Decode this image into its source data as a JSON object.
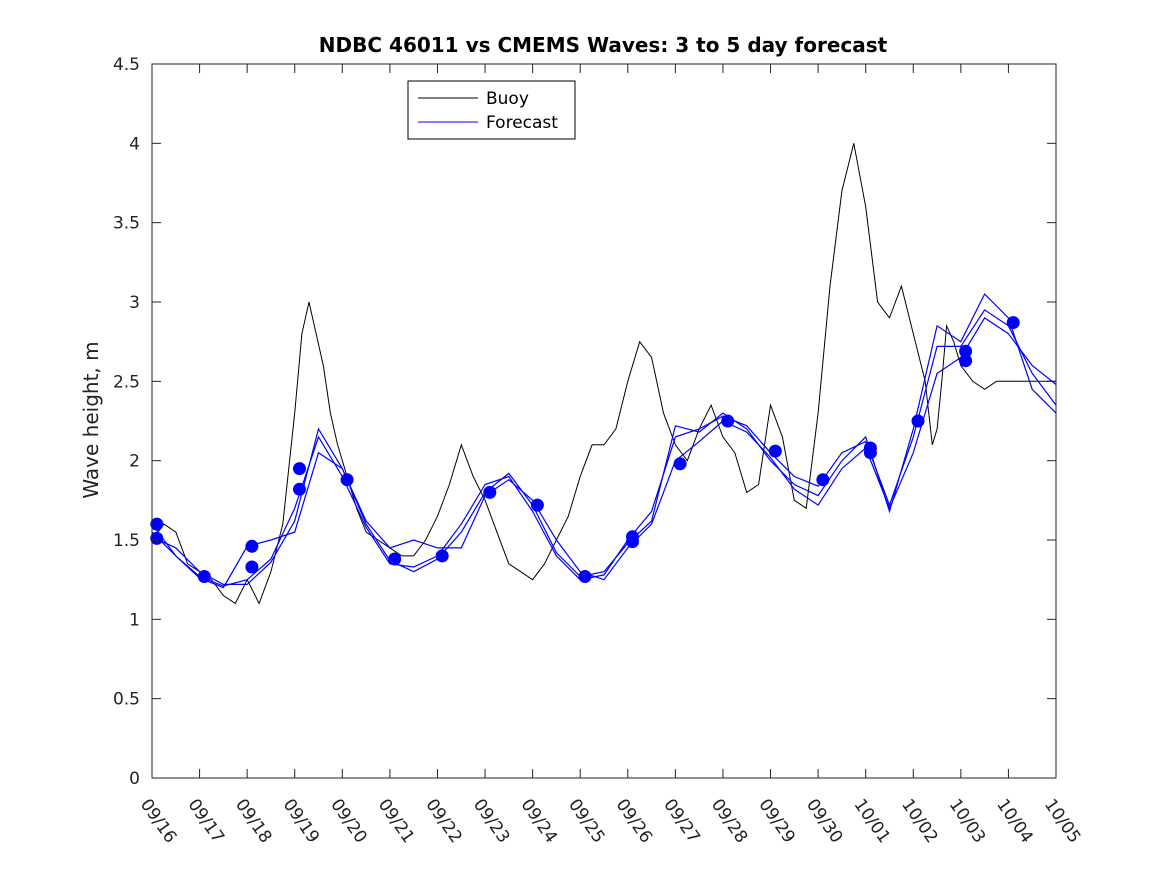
{
  "chart_data": {
    "type": "line",
    "title": "NDBC 46011 vs CMEMS Waves: 3 to 5 day forecast",
    "xlabel": "",
    "ylabel": "Wave height, m",
    "xlim": [
      0,
      19
    ],
    "ylim": [
      0,
      4.5
    ],
    "x_tick_labels": [
      "09/16",
      "09/17",
      "09/18",
      "09/19",
      "09/20",
      "09/21",
      "09/22",
      "09/23",
      "09/24",
      "09/25",
      "09/26",
      "09/27",
      "09/28",
      "09/29",
      "09/30",
      "10/01",
      "10/02",
      "10/03",
      "10/04",
      "10/05"
    ],
    "y_ticks": [
      0,
      0.5,
      1,
      1.5,
      2,
      2.5,
      3,
      3.5,
      4,
      4.5
    ],
    "y_tick_labels": [
      "0",
      "0.5",
      "1",
      "1.5",
      "2",
      "2.5",
      "3",
      "3.5",
      "4",
      "4.5"
    ],
    "legend": {
      "position": "top-left",
      "entries": [
        "Buoy",
        "Forecast"
      ]
    },
    "colors": {
      "buoy": "#000000",
      "forecast": "#0000ff"
    },
    "buoy": {
      "name": "Buoy",
      "x": [
        0,
        0.25,
        0.5,
        0.75,
        1,
        1.25,
        1.5,
        1.75,
        2,
        2.25,
        2.5,
        2.75,
        3,
        3.15,
        3.3,
        3.45,
        3.6,
        3.75,
        3.9,
        4.1,
        4.3,
        4.5,
        4.75,
        5,
        5.25,
        5.5,
        5.75,
        6,
        6.25,
        6.5,
        6.75,
        7,
        7.25,
        7.5,
        7.75,
        8,
        8.25,
        8.5,
        8.75,
        9,
        9.25,
        9.5,
        9.75,
        10,
        10.25,
        10.5,
        10.75,
        11,
        11.25,
        11.5,
        11.75,
        12,
        12.25,
        12.5,
        12.75,
        13,
        13.25,
        13.5,
        13.75,
        14,
        14.25,
        14.5,
        14.75,
        15,
        15.25,
        15.5,
        15.75,
        16,
        16.25,
        16.4,
        16.5,
        16.6,
        16.7,
        16.85,
        17,
        17.25,
        17.5,
        17.75,
        18,
        18.25,
        18.5,
        18.75,
        19
      ],
      "y": [
        1.5,
        1.6,
        1.55,
        1.35,
        1.3,
        1.25,
        1.15,
        1.1,
        1.25,
        1.1,
        1.3,
        1.6,
        2.3,
        2.8,
        3.0,
        2.8,
        2.6,
        2.3,
        2.1,
        1.9,
        1.7,
        1.55,
        1.5,
        1.45,
        1.4,
        1.4,
        1.5,
        1.65,
        1.85,
        2.1,
        1.9,
        1.75,
        1.55,
        1.35,
        1.3,
        1.25,
        1.35,
        1.5,
        1.65,
        1.9,
        2.1,
        2.1,
        2.2,
        2.5,
        2.75,
        2.65,
        2.3,
        2.1,
        2.0,
        2.2,
        2.35,
        2.15,
        2.05,
        1.8,
        1.85,
        2.35,
        2.15,
        1.75,
        1.7,
        2.3,
        3.1,
        3.7,
        4.0,
        3.6,
        3.0,
        2.9,
        3.1,
        2.8,
        2.5,
        2.1,
        2.2,
        2.5,
        2.85,
        2.75,
        2.6,
        2.5,
        2.45,
        2.5,
        2.5,
        2.5,
        2.5,
        2.5,
        2.5
      ]
    },
    "forecast_runs": [
      {
        "name": "Forecast",
        "x": [
          0,
          0.5,
          1,
          1.5,
          2,
          2.5,
          3,
          3.5,
          4,
          4.5,
          5,
          5.5,
          6,
          6.5,
          7,
          7.5,
          8,
          8.5,
          9,
          9.5,
          10,
          10.5,
          11,
          11.5,
          12,
          12.5,
          13,
          13.5,
          14,
          14.5,
          15,
          15.5,
          16,
          16.5,
          17,
          17.5,
          18,
          18.5,
          19
        ],
        "y": [
          1.6,
          1.4,
          1.27,
          1.21,
          1.25,
          1.38,
          1.7,
          2.15,
          1.9,
          1.58,
          1.35,
          1.33,
          1.4,
          1.6,
          1.85,
          1.9,
          1.68,
          1.4,
          1.25,
          1.28,
          1.5,
          1.68,
          2.15,
          2.2,
          2.28,
          2.22,
          2.05,
          1.9,
          1.84,
          2.05,
          2.12,
          1.72,
          2.15,
          2.72,
          2.72,
          2.95,
          2.85,
          2.55,
          2.35
        ]
      },
      {
        "name": "Forecast",
        "x": [
          0,
          0.5,
          1,
          1.5,
          2,
          2.5,
          3,
          3.5,
          4,
          4.5,
          5,
          5.5,
          6,
          6.5,
          7,
          7.5,
          8,
          8.5,
          9,
          9.5,
          10,
          10.5,
          11,
          11.5,
          12,
          12.5,
          13,
          13.5,
          14,
          14.5,
          15,
          15.5,
          16,
          16.5,
          17,
          17.5,
          18,
          18.5,
          19
        ],
        "y": [
          1.52,
          1.45,
          1.3,
          1.22,
          1.22,
          1.36,
          1.62,
          2.2,
          1.95,
          1.6,
          1.37,
          1.3,
          1.38,
          1.55,
          1.8,
          1.92,
          1.72,
          1.42,
          1.27,
          1.3,
          1.48,
          1.62,
          2.22,
          2.18,
          2.3,
          2.2,
          2.0,
          1.85,
          1.78,
          2.0,
          2.15,
          1.68,
          2.2,
          2.85,
          2.75,
          3.05,
          2.9,
          2.45,
          2.3
        ]
      },
      {
        "name": "Forecast",
        "x": [
          0,
          0.5,
          1,
          1.5,
          2,
          2.5,
          3,
          3.5,
          4,
          4.5,
          5,
          5.5,
          6,
          6.5,
          7,
          7.5,
          8,
          8.5,
          9,
          9.5,
          10,
          10.5,
          11,
          11.5,
          12,
          12.5,
          13,
          13.5,
          14,
          14.5,
          15,
          15.5,
          16,
          16.5,
          17,
          17.5,
          18,
          18.5,
          19
        ],
        "y": [
          1.55,
          1.4,
          1.26,
          1.2,
          1.46,
          1.5,
          1.55,
          2.05,
          1.95,
          1.62,
          1.45,
          1.5,
          1.45,
          1.45,
          1.78,
          1.88,
          1.75,
          1.5,
          1.3,
          1.25,
          1.45,
          1.6,
          2.0,
          2.12,
          2.25,
          2.18,
          2.02,
          1.82,
          1.72,
          1.95,
          2.08,
          1.7,
          2.05,
          2.55,
          2.65,
          2.9,
          2.8,
          2.6,
          2.48
        ]
      }
    ],
    "markers": {
      "name": "Forecast",
      "x": [
        0.1,
        0.1,
        1.1,
        2.1,
        2.1,
        3.1,
        3.1,
        4.1,
        5.1,
        6.1,
        7.1,
        8.1,
        9.1,
        10.1,
        10.1,
        11.1,
        12.1,
        13.1,
        14.1,
        15.1,
        15.1,
        16.1,
        17.1,
        17.1,
        18.1
      ],
      "y": [
        1.6,
        1.51,
        1.27,
        1.46,
        1.33,
        1.95,
        1.82,
        1.88,
        1.38,
        1.4,
        1.8,
        1.72,
        1.27,
        1.52,
        1.49,
        1.98,
        2.25,
        2.06,
        1.88,
        2.08,
        2.05,
        2.25,
        2.69,
        2.63,
        2.87
      ]
    }
  }
}
